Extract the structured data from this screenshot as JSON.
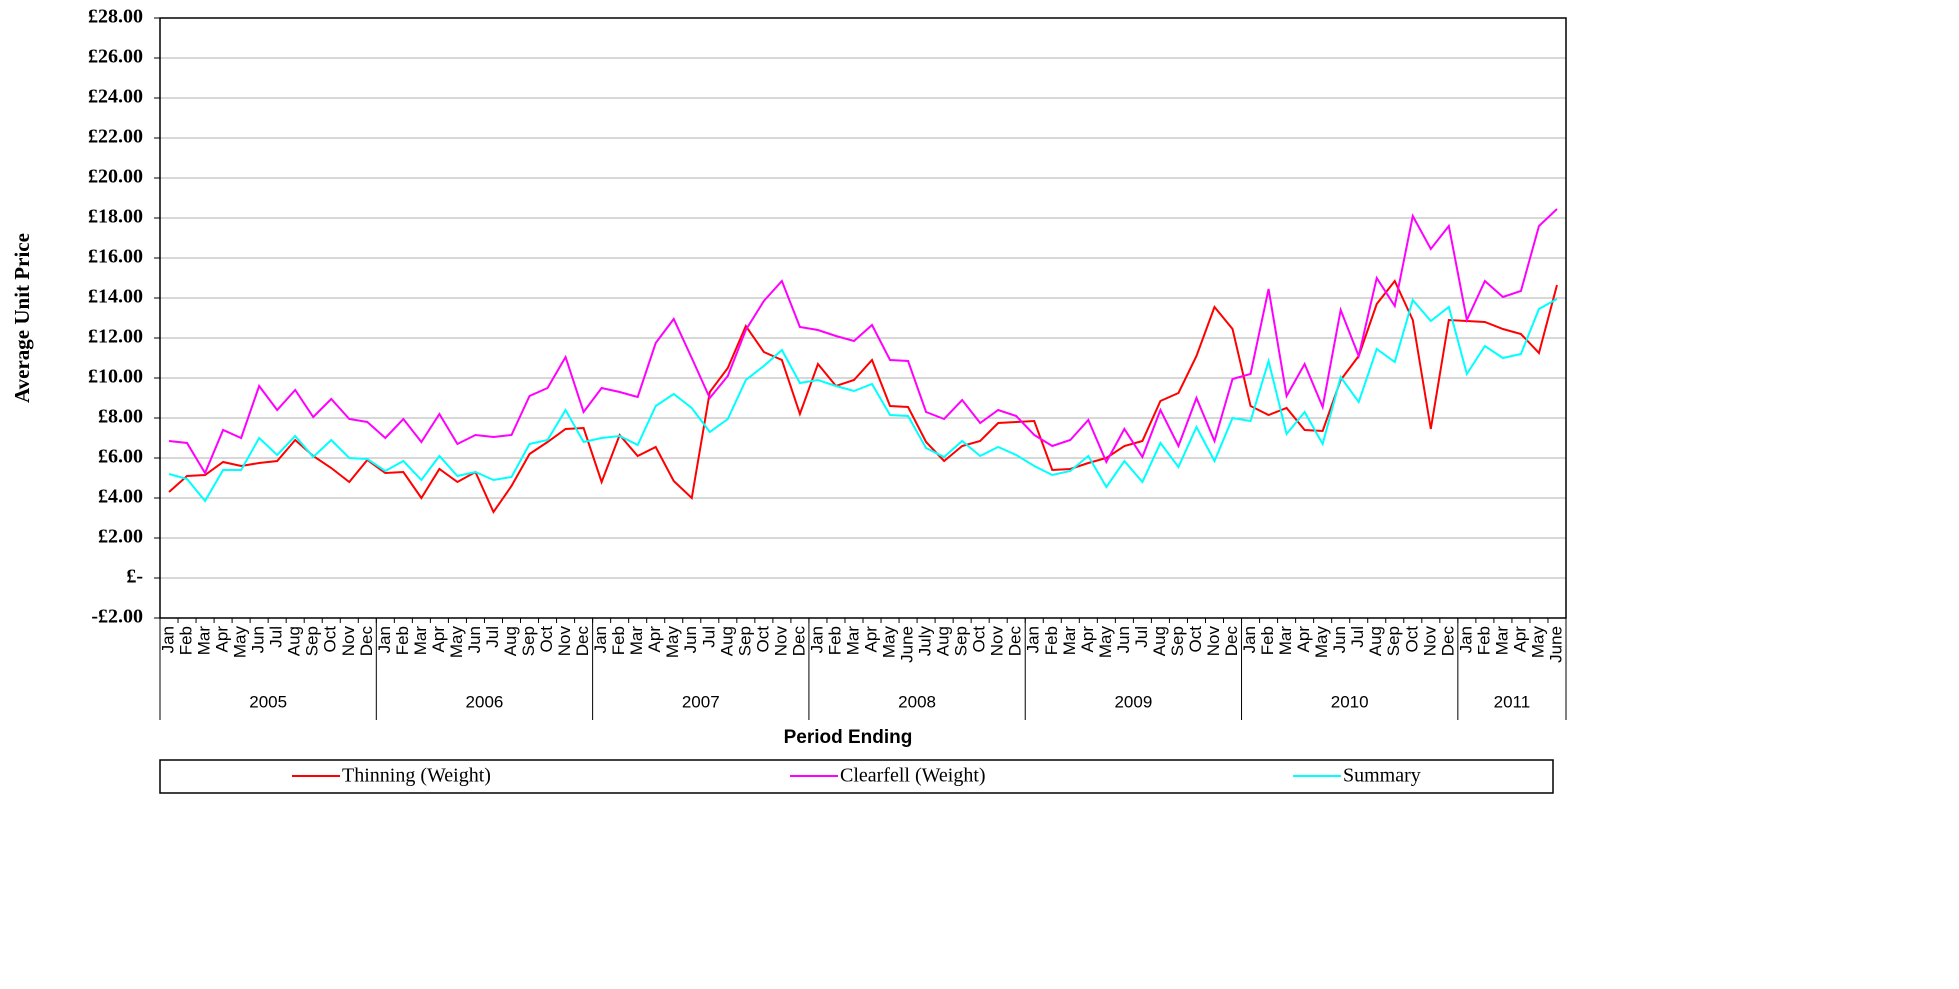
{
  "chart_data": {
    "type": "line",
    "y_label": "Average Unit Price",
    "x_label": "Period Ending",
    "category_groups": [
      {
        "label": "2005",
        "categories": [
          "Jan",
          "Feb",
          "Mar",
          "Apr",
          "May",
          "Jun",
          "Jul",
          "Aug",
          "Sep",
          "Oct",
          "Nov",
          "Dec"
        ]
      },
      {
        "label": "2006",
        "categories": [
          "Jan",
          "Feb",
          "Mar",
          "Apr",
          "May",
          "Jun",
          "Jul",
          "Aug",
          "Sep",
          "Oct",
          "Nov",
          "Dec"
        ]
      },
      {
        "label": "2007",
        "categories": [
          "Jan",
          "Feb",
          "Mar",
          "Apr",
          "May",
          "Jun",
          "Jul",
          "Aug",
          "Sep",
          "Oct",
          "Nov",
          "Dec"
        ]
      },
      {
        "label": "2008",
        "categories": [
          "Jan",
          "Feb",
          "Mar",
          "Apr",
          "May",
          "June",
          "July",
          "Aug",
          "Sep",
          "Oct",
          "Nov",
          "Dec"
        ]
      },
      {
        "label": "2009",
        "categories": [
          "Jan",
          "Feb",
          "Mar",
          "Apr",
          "May",
          "Jun",
          "Jul",
          "Aug",
          "Sep",
          "Oct",
          "Nov",
          "Dec"
        ]
      },
      {
        "label": "2010",
        "categories": [
          "Jan",
          "Feb",
          "Mar",
          "Apr",
          "May",
          "Jun",
          "Jul",
          "Aug",
          "Sep",
          "Oct",
          "Nov",
          "Dec"
        ]
      },
      {
        "label": "2011",
        "categories": [
          "Jan",
          "Feb",
          "Mar",
          "Apr",
          "May",
          "June"
        ]
      }
    ],
    "series": [
      {
        "name": "Thinning (Weight)",
        "color": "#ff0000",
        "values": [
          4.3,
          5.1,
          5.15,
          5.8,
          5.6,
          5.75,
          5.85,
          6.9,
          6.1,
          5.5,
          4.8,
          5.9,
          5.25,
          5.3,
          4.0,
          5.45,
          4.8,
          5.3,
          3.3,
          4.6,
          6.2,
          6.8,
          7.45,
          7.5,
          4.8,
          7.15,
          6.1,
          6.55,
          4.85,
          4.0,
          9.3,
          10.5,
          12.6,
          11.3,
          10.9,
          8.2,
          10.7,
          9.6,
          9.9,
          10.9,
          8.6,
          8.55,
          6.8,
          5.85,
          6.6,
          6.85,
          7.75,
          7.8,
          7.85,
          5.4,
          5.45,
          5.75,
          6.0,
          6.6,
          6.85,
          8.85,
          9.25,
          11.1,
          13.55,
          12.45,
          8.6,
          8.15,
          8.5,
          7.4,
          7.35,
          9.9,
          11.1,
          13.7,
          14.85,
          12.9,
          7.45,
          12.9,
          12.85,
          12.8,
          12.45,
          12.2,
          11.25,
          14.65
        ]
      },
      {
        "name": "Clearfell (Weight)",
        "color": "#ff00ff",
        "values": [
          6.85,
          6.75,
          5.25,
          7.4,
          7.0,
          9.6,
          8.4,
          9.4,
          8.05,
          8.95,
          7.95,
          7.8,
          7.0,
          7.95,
          6.8,
          8.2,
          6.7,
          7.15,
          7.05,
          7.15,
          9.1,
          9.5,
          11.05,
          8.3,
          9.5,
          9.3,
          9.05,
          11.75,
          12.95,
          11.0,
          9.0,
          10.1,
          12.4,
          13.85,
          14.85,
          12.55,
          12.4,
          12.1,
          11.85,
          12.65,
          10.9,
          10.85,
          8.3,
          7.95,
          8.9,
          7.75,
          8.4,
          8.1,
          7.15,
          6.6,
          6.9,
          7.9,
          5.8,
          7.45,
          6.05,
          8.4,
          6.6,
          9.0,
          6.85,
          9.95,
          10.2,
          14.45,
          9.1,
          10.7,
          8.55,
          13.4,
          11.1,
          15.0,
          13.6,
          18.1,
          16.45,
          17.6,
          12.9,
          14.85,
          14.05,
          14.35,
          17.6,
          18.45
        ]
      },
      {
        "name": "Summary",
        "color": "#00ffff",
        "values": [
          5.2,
          4.95,
          3.85,
          5.4,
          5.4,
          7.0,
          6.15,
          7.1,
          6.05,
          6.9,
          6.0,
          5.95,
          5.35,
          5.85,
          4.9,
          6.1,
          5.1,
          5.3,
          4.9,
          5.05,
          6.7,
          6.9,
          8.4,
          6.8,
          7.0,
          7.1,
          6.65,
          8.6,
          9.2,
          8.5,
          7.3,
          7.95,
          9.9,
          10.6,
          11.4,
          9.75,
          9.9,
          9.6,
          9.35,
          9.7,
          8.15,
          8.1,
          6.5,
          6.05,
          6.85,
          6.1,
          6.55,
          6.15,
          5.6,
          5.15,
          5.35,
          6.1,
          4.55,
          5.85,
          4.8,
          6.75,
          5.55,
          7.55,
          5.85,
          8.0,
          7.85,
          10.85,
          7.2,
          8.3,
          6.7,
          10.05,
          8.8,
          11.45,
          10.8,
          13.9,
          12.85,
          13.55,
          10.2,
          11.6,
          11.0,
          11.2,
          13.45,
          13.95
        ]
      }
    ],
    "ylim": [
      -2,
      28
    ],
    "yticks": [
      {
        "value": 28,
        "label": "£28.00"
      },
      {
        "value": 26,
        "label": "£26.00"
      },
      {
        "value": 24,
        "label": "£24.00"
      },
      {
        "value": 22,
        "label": "£22.00"
      },
      {
        "value": 20,
        "label": "£20.00"
      },
      {
        "value": 18,
        "label": "£18.00"
      },
      {
        "value": 16,
        "label": "£16.00"
      },
      {
        "value": 14,
        "label": "£14.00"
      },
      {
        "value": 12,
        "label": "£12.00"
      },
      {
        "value": 10,
        "label": "£10.00"
      },
      {
        "value": 8,
        "label": "£8.00"
      },
      {
        "value": 6,
        "label": "£6.00"
      },
      {
        "value": 4,
        "label": "£4.00"
      },
      {
        "value": 2,
        "label": "£2.00"
      },
      {
        "value": 0,
        "label": "£-"
      },
      {
        "value": -2,
        "label": "-£2.00"
      }
    ],
    "grid": true,
    "legend": "bottom"
  }
}
